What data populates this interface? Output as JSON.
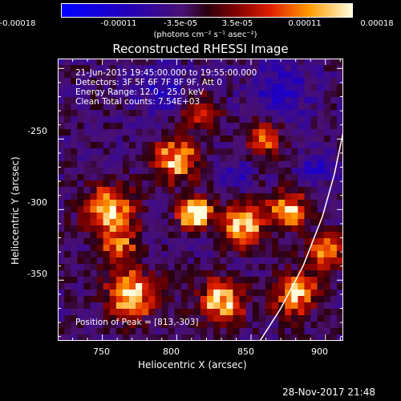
{
  "chart_data": {
    "type": "heatmap",
    "title": "Reconstructed RHESSI Image",
    "xlabel": "Heliocentric X (arcsec)",
    "ylabel": "Heliocentric Y (arcsec)",
    "xlim": [
      720,
      912
    ],
    "ylim": [
      -393,
      -193
    ],
    "xticks": [
      "750",
      "800",
      "850",
      "900"
    ],
    "yticks": [
      "-250",
      "-300",
      "-350"
    ],
    "colorbar": {
      "min": -0.00018,
      "max": 0.00018,
      "ticks": [
        "-0.00018",
        "-0.00011",
        "-3.5e-05",
        "3.5e-05",
        "0.00011",
        "0.00018"
      ],
      "unit": "(photons cm⁻² s⁻¹ asec⁻²)"
    },
    "annotations": {
      "time": "21-Jun-2015 19:45:00.000 to 19:55:00.000",
      "detectors": "Detectors: 3F 5F 6F 7F 8F 9F, Att 0",
      "energy": "Energy Range: 12.0 - 25.0 keV",
      "method": "Clean     Total counts: 7.54E+03",
      "peak": "Position of Peak = [813,-303]"
    },
    "peak": [
      813,
      -303
    ],
    "limb_curve": [
      [
        856,
        -393
      ],
      [
        870,
        -370
      ],
      [
        885,
        -340
      ],
      [
        898,
        -305
      ],
      [
        906,
        -275
      ],
      [
        912,
        -245
      ]
    ]
  },
  "footer": {
    "timestamp": "28-Nov-2017 21:48"
  }
}
